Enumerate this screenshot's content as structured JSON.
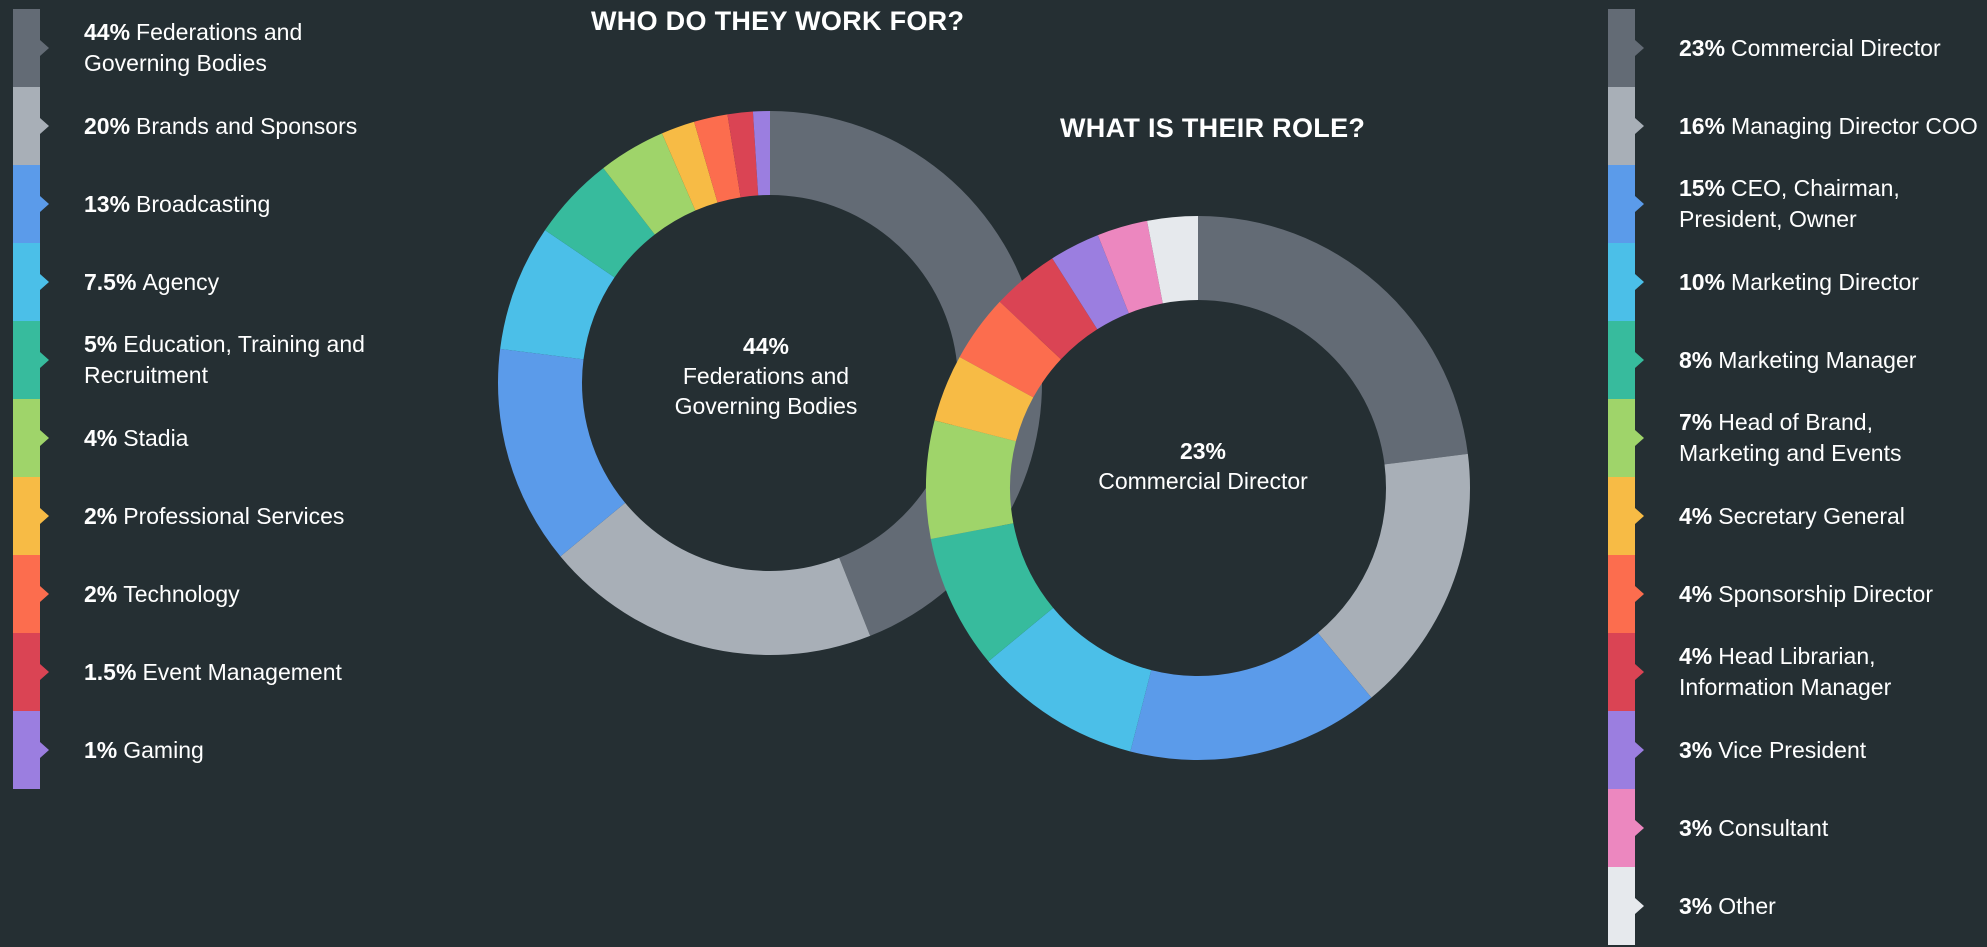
{
  "colors": [
    "#636b75",
    "#a8afb7",
    "#5b9bea",
    "#4bbfe8",
    "#37bb9d",
    "#9fd46a",
    "#f7bb45",
    "#fc6d4e",
    "#da4454",
    "#9b7ee0",
    "#ec87bf",
    "#e6e9ed"
  ],
  "background": "#252f33",
  "chart_data": [
    {
      "type": "pie",
      "title": "WHO DO THEY WORK FOR?",
      "center_label": {
        "pct": "44%",
        "text": "Federations and Governing Bodies"
      },
      "slices": [
        {
          "label": "Federations and Governing Bodies",
          "value": 44,
          "pct": "44%",
          "color": "#636b75"
        },
        {
          "label": "Brands and Sponsors",
          "value": 20,
          "pct": "20%",
          "color": "#a8afb7"
        },
        {
          "label": "Broadcasting",
          "value": 13,
          "pct": "13%",
          "color": "#5b9bea"
        },
        {
          "label": "Agency",
          "value": 7.5,
          "pct": "7.5%",
          "color": "#4bbfe8"
        },
        {
          "label": "Education, Training and Recruitment",
          "value": 5,
          "pct": "5%",
          "color": "#37bb9d"
        },
        {
          "label": "Stadia",
          "value": 4,
          "pct": "4%",
          "color": "#9fd46a"
        },
        {
          "label": "Professional Services",
          "value": 2,
          "pct": "2%",
          "color": "#f7bb45"
        },
        {
          "label": "Technology",
          "value": 2,
          "pct": "2%",
          "color": "#fc6d4e"
        },
        {
          "label": "Event Management",
          "value": 1.5,
          "pct": "1.5%",
          "color": "#da4454"
        },
        {
          "label": "Gaming",
          "value": 1,
          "pct": "1%",
          "color": "#9b7ee0"
        }
      ]
    },
    {
      "type": "pie",
      "title": "WHAT IS THEIR ROLE?",
      "center_label": {
        "pct": "23%",
        "text": "Commercial Director"
      },
      "slices": [
        {
          "label": "Commercial Director",
          "value": 23,
          "pct": "23%",
          "color": "#636b75"
        },
        {
          "label": "Managing Director COO",
          "value": 16,
          "pct": "16%",
          "color": "#a8afb7"
        },
        {
          "label": "CEO, Chairman, President, Owner",
          "value": 15,
          "pct": "15%",
          "color": "#5b9bea"
        },
        {
          "label": "Marketing Director",
          "value": 10,
          "pct": "10%",
          "color": "#4bbfe8"
        },
        {
          "label": "Marketing Manager",
          "value": 8,
          "pct": "8%",
          "color": "#37bb9d"
        },
        {
          "label": "Head of Brand, Marketing and Events",
          "value": 7,
          "pct": "7%",
          "color": "#9fd46a"
        },
        {
          "label": "Secretary General",
          "value": 4,
          "pct": "4%",
          "color": "#f7bb45"
        },
        {
          "label": "Sponsorship Director",
          "value": 4,
          "pct": "4%",
          "color": "#fc6d4e"
        },
        {
          "label": "Head Librarian, Information Manager",
          "value": 4,
          "pct": "4%",
          "color": "#da4454"
        },
        {
          "label": "Vice President",
          "value": 3,
          "pct": "3%",
          "color": "#9b7ee0"
        },
        {
          "label": "Consultant",
          "value": 3,
          "pct": "3%",
          "color": "#ec87bf"
        },
        {
          "label": "Other",
          "value": 3,
          "pct": "3%",
          "color": "#e6e9ed"
        }
      ]
    }
  ]
}
